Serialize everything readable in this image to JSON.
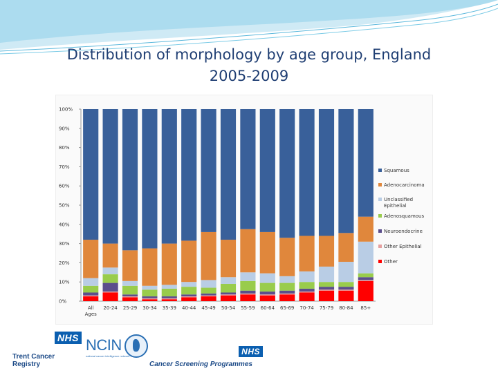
{
  "title": {
    "line1": "Distribution of morphology by age group, England",
    "line2": "2005-2009"
  },
  "chart_data": {
    "type": "bar",
    "stacked": true,
    "normalized": true,
    "title": "",
    "xlabel": "",
    "ylabel": "",
    "ylim": [
      0,
      100
    ],
    "y_ticks": [
      "0%",
      "10%",
      "20%",
      "30%",
      "40%",
      "50%",
      "60%",
      "70%",
      "80%",
      "90%",
      "100%"
    ],
    "categories": [
      "All Ages",
      "20-24",
      "25-29",
      "30-34",
      "35-39",
      "40-44",
      "45-49",
      "50-54",
      "55-59",
      "60-64",
      "65-69",
      "70-74",
      "75-79",
      "80-84",
      "85+"
    ],
    "legend_position": "right",
    "grid": false,
    "series": [
      {
        "name": "Other",
        "color": "#ff0000",
        "values": [
          2.5,
          4.5,
          2,
          1,
          1,
          2,
          2.5,
          3,
          3.5,
          3,
          3.5,
          4.5,
          5.5,
          5.5,
          10.5
        ]
      },
      {
        "name": "Other Epithelial",
        "color": "#e6a0a0",
        "values": [
          0.5,
          0.5,
          0.5,
          0.5,
          0.5,
          0.5,
          0.5,
          0.5,
          0.5,
          0.5,
          0.5,
          0.5,
          0.5,
          0.5,
          0.5
        ]
      },
      {
        "name": "Neuroendocrine",
        "color": "#5b4e8c",
        "values": [
          1.5,
          4.5,
          1,
          1,
          1,
          1,
          1,
          1,
          1.5,
          1.5,
          1.5,
          1.5,
          1.5,
          1.5,
          1.5
        ]
      },
      {
        "name": "Adenosquamous",
        "color": "#99cc4c",
        "values": [
          3.5,
          4.5,
          4.5,
          3.5,
          4,
          4,
          3,
          4.5,
          5,
          4.5,
          4,
          3.5,
          2.5,
          2.5,
          2
        ]
      },
      {
        "name": "Unclassified Epithelial",
        "color": "#b9cde5",
        "values": [
          4,
          3.5,
          2.5,
          2,
          2,
          2.5,
          4,
          3.5,
          4.5,
          5,
          3.5,
          5.5,
          8,
          10.5,
          16.5
        ]
      },
      {
        "name": "Adenocarcinoma",
        "color": "#e0873c",
        "values": [
          20,
          12.5,
          16,
          19.5,
          21.5,
          21.5,
          25,
          19.5,
          22.5,
          21.5,
          20,
          18.5,
          16,
          15,
          13
        ]
      },
      {
        "name": "Squamous",
        "color": "#39609a",
        "values": [
          68,
          70,
          73.5,
          72.5,
          70,
          68.5,
          64,
          68,
          62.5,
          64,
          67,
          66,
          66,
          64.5,
          56
        ]
      }
    ],
    "legend_order": [
      "Squamous",
      "Adenocarcinoma",
      "Unclassified Epithelial",
      "Adenosquamous",
      "Neuroendocrine",
      "Other Epithelial",
      "Other"
    ]
  },
  "logos": {
    "nhs_mark": "NHS",
    "trent": "Trent Cancer Registry",
    "ncin": "NCIN",
    "ncin_sub": "national cancer intelligence network",
    "screening_nhs": "NHS",
    "screening": "Cancer Screening Programmes"
  }
}
